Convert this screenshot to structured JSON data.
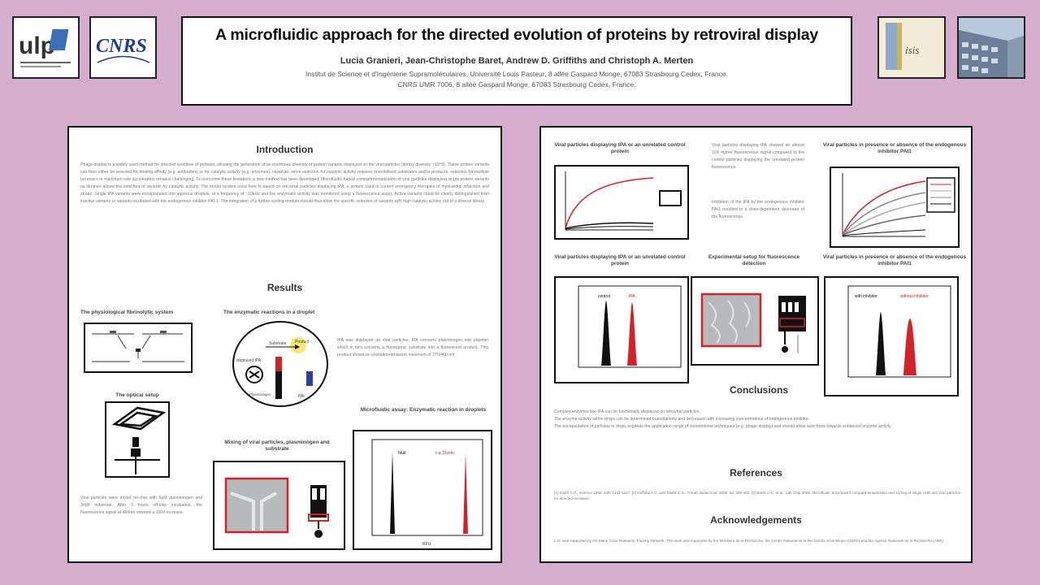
{
  "header": {
    "title": "A microfluidic approach for the directed evolution of proteins by retroviral display",
    "authors": "Lucia Granieri, Jean-Christophe Baret, Andrew D. Griffiths and Christoph A. Merten",
    "affil_1": "Institut de Science et d'Ingénierie Supramoléculaires, Université Louis Pasteur, 8 allée Gaspard Monge, 67083 Strasbourg Cedex, France.",
    "affil_2": "CNRS UMR 7006, 8 allée Gaspard Monge, 67083 Strasbourg Cedex, France."
  },
  "logos": {
    "ulp": "ulp",
    "cnrs": "CNRS",
    "isis": "isis"
  },
  "left": {
    "introduction_title": "Introduction",
    "introduction_text": "Phage display is a widely used method for directed evolution of proteins, allowing the generation of an enormous diversity of protein variants displayed on the viral particles (library diversity >10^9). These protein variants can then either be selected for binding affinity (e.g. antibodies) or for catalytic activity (e.g. enzymes). However, since selection for catalytic activity requires immobilised substrates and/or products, selection for multiple turnovers or maximum rate acceleration remains challenging. To overcome these limitations a new method has been developed: Microfluidic-based compartmentalization of viral particles displaying single protein variants as libraries allows the selection of variants by catalytic activity. The model system used here is based on retroviral particles displaying tPA, a protein used in current emergency therapies of myocardial infarction and stroke. Single tPA variants were encapsulated into aqueous droplets, at a frequency of ~10kHz and the enzymatic activity was monitored using a fluorescence assay. Active variants could be clearly distinguished from inactive variants or variants incubated with the endogenous inhibitor PAI-1. The integration of a further sorting module should thus allow the specific selection of variants with high catalytic activity out of a diverse library.",
    "results_title": "Results",
    "fibrinolytic_title": "The physiological fibrinolytic system",
    "enzymatic_title": "The enzymatic reactions in a droplet",
    "optical_title": "The optical setup",
    "tpa_text": "tPA was displayed on viral particles. tPA converts plasminogen into plasmin which in turn converts a fluorogenic substrate into a fluorescent product. This product shows an excitation/emission maximum of 370/460 nm.",
    "droplet_labels": {
      "substrate": "Substrate",
      "product": "Product",
      "displayed": "displayed tPA",
      "plasminogen": "Plasminogen",
      "pai": "PAI"
    },
    "mixing_title": "Mixing of viral particles, plasminogen and substrate",
    "assay_title": "Microfluidic assay: Enzymatic reaction in droplets",
    "viral_text": "Viral particles were mixed on-chip with 6µM plasminogen and 3mM substrate. After 3 hours off-chip incubation, the fluorescence signal at 460nm showed a 100X increase.",
    "assay_legend": {
      "null": "Null",
      "tpa": "t-a 31min"
    },
    "assay_xlabel": "RFU"
  },
  "right": {
    "fig1_title": "Viral particles displaying tPA or an unrelated control protein",
    "fig1_text_a": "Viral particles displaying tPA showed an almost 10X higher fluorescence signal compared to the control particles displaying the unrelated protein fluorescence.",
    "fig1_text_b": "Inhibition of the tPA by the endogenous inhibitor PAI1 resulted in a dose-dependent decrease of the fluorescence.",
    "fig3_title": "Viral particles in presence or absence of the endogenous inhibitor PAI1",
    "fig4_title": "Viral particles displaying tPA or an unrelated control protein",
    "fig5_title": "Experimental setup for fluorescence detection",
    "fig6_title": "Viral particles in presence or absence of the endogenous inhibitor PAI1",
    "fig4_legend": {
      "control": "control",
      "tpa": "tPA"
    },
    "fig6_legend": {
      "without": "with inhibitor",
      "with": "without inhibitor"
    },
    "conclusions_title": "Conclusions",
    "conclusions_text_1": "Complex enzymes like tPA can be functionally displayed on retroviral particles.",
    "conclusions_text_2": "The enzyme activity within drops can be determined quantitatively and decreases with increasing concentrations of endogenous inhibitor.",
    "conclusions_text_3": "The encapsulation of particles in drops expands the application range of conventional techniques (e.g. phage display) and should allow selections towards enhanced enzyme activity.",
    "references_title": "References",
    "references_text": "[1] Smith G.P., Science 1985, 228, 1315-1317. [2] Griffiths A.D. and Tawfik D.S., Trends Biotechnol. 2006, 24, 395-402. [3] Baret J.-C. et al., Lab Chip 2009. Microfluidic drop-based compartmentalization and sorting of single cells and viral particles for directed evolution.",
    "ack_title": "Acknowledgements",
    "ack_text": "L.G. was supported by the Marie Curie Research Training Network. This work was supported by the Ministère de la Recherche, the Centre National de la Recherche Scientifique (CNRS) and the Agence Nationale de la Recherche (ANR)."
  },
  "colors": {
    "background": "#d6aecd",
    "accent_red": "#d3232a"
  }
}
